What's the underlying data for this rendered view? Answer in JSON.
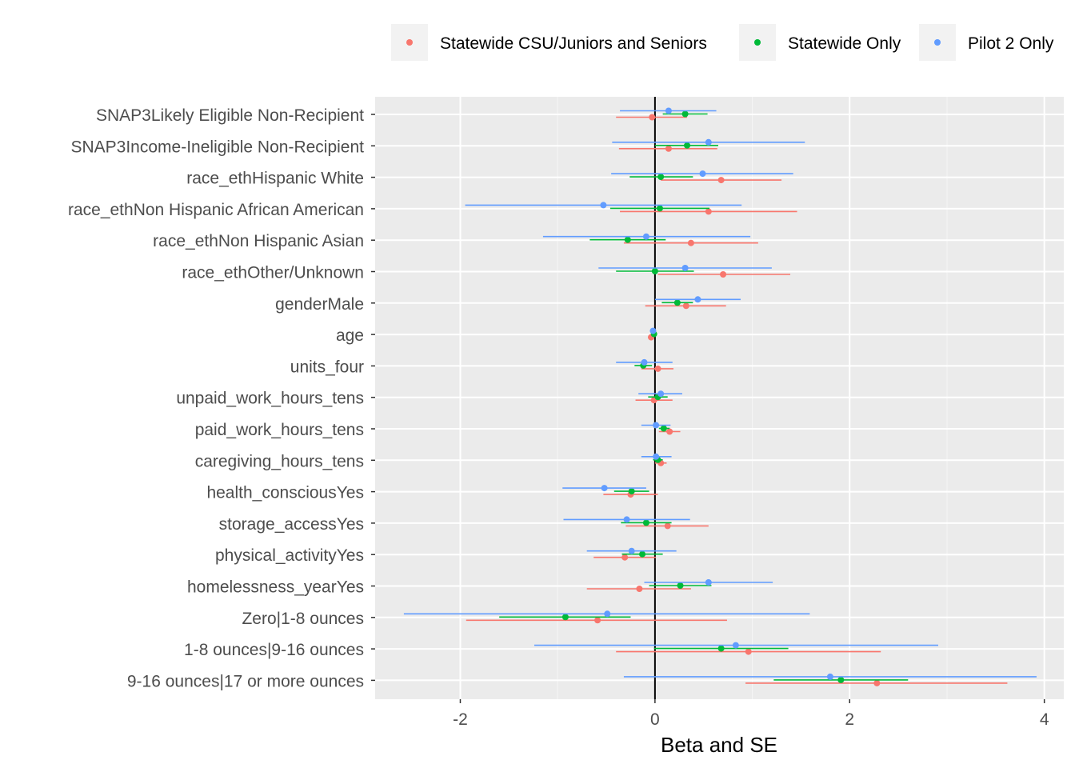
{
  "chart_data": {
    "type": "scatter",
    "title": "",
    "xlabel": "Beta and SE",
    "ylabel": "",
    "xlim": [
      -2.875,
      4.2
    ],
    "x_ticks": [
      -2,
      0,
      2,
      4
    ],
    "x_tick_labels": [
      "-2",
      "0",
      "2",
      "4"
    ],
    "zero_line": 0,
    "grid": true,
    "legend_position": "top",
    "categories": [
      "SNAP3Likely Eligible Non-Recipient",
      "SNAP3Income-Ineligible Non-Recipient",
      "race_ethHispanic White",
      "race_ethNon Hispanic African American",
      "race_ethNon Hispanic Asian",
      "race_ethOther/Unknown",
      "genderMale",
      "age",
      "units_four",
      "unpaid_work_hours_tens",
      "paid_work_hours_tens",
      "caregiving_hours_tens",
      "health_consciousYes",
      "storage_accessYes",
      "physical_activityYes",
      "homelessness_yearYes",
      "Zero|1-8 ounces",
      "1-8 ounces|9-16 ounces",
      "9-16 ounces|17 or more ounces"
    ],
    "series": [
      {
        "name": "Statewide CSU/Juniors and Seniors",
        "color": "#F8766D",
        "estimate": [
          -0.03,
          0.14,
          0.68,
          0.55,
          0.37,
          0.7,
          0.32,
          -0.04,
          0.03,
          -0.01,
          0.15,
          0.06,
          -0.25,
          0.13,
          -0.31,
          -0.16,
          -0.59,
          0.96,
          2.28
        ],
        "lower": [
          -0.4,
          -0.37,
          0.06,
          -0.36,
          -0.32,
          0.03,
          -0.1,
          -0.06,
          -0.14,
          -0.2,
          0.04,
          0.0,
          -0.53,
          -0.3,
          -0.63,
          -0.7,
          -1.94,
          -0.4,
          0.93
        ],
        "upper": [
          0.33,
          0.64,
          1.3,
          1.46,
          1.06,
          1.39,
          0.73,
          -0.02,
          0.19,
          0.18,
          0.26,
          0.12,
          0.03,
          0.55,
          0.01,
          0.37,
          0.74,
          2.32,
          3.62
        ]
      },
      {
        "name": "Statewide Only",
        "color": "#00BA38",
        "estimate": [
          0.31,
          0.33,
          0.06,
          0.05,
          -0.28,
          0.0,
          0.23,
          -0.01,
          -0.12,
          0.03,
          0.09,
          0.03,
          -0.24,
          -0.09,
          -0.13,
          0.26,
          -0.92,
          0.68,
          1.91
        ],
        "lower": [
          0.08,
          0.0,
          -0.26,
          -0.46,
          -0.67,
          -0.4,
          0.07,
          -0.02,
          -0.21,
          -0.07,
          0.04,
          -0.02,
          -0.42,
          -0.35,
          -0.34,
          -0.06,
          -1.6,
          -0.01,
          1.22
        ],
        "upper": [
          0.54,
          0.65,
          0.39,
          0.56,
          0.11,
          0.4,
          0.39,
          0.0,
          -0.03,
          0.13,
          0.15,
          0.08,
          -0.06,
          0.17,
          0.08,
          0.58,
          -0.25,
          1.37,
          2.6
        ]
      },
      {
        "name": "Pilot 2 Only",
        "color": "#619CFF",
        "estimate": [
          0.14,
          0.55,
          0.49,
          -0.53,
          -0.09,
          0.31,
          0.44,
          -0.02,
          -0.11,
          0.06,
          0.01,
          0.01,
          -0.52,
          -0.29,
          -0.24,
          0.55,
          -0.49,
          0.83,
          1.8
        ],
        "lower": [
          -0.36,
          -0.44,
          -0.45,
          -1.95,
          -1.15,
          -0.58,
          0.0,
          -0.03,
          -0.4,
          -0.17,
          -0.14,
          -0.14,
          -0.95,
          -0.94,
          -0.7,
          -0.11,
          -2.58,
          -1.24,
          -0.32
        ],
        "upper": [
          0.63,
          1.54,
          1.42,
          0.89,
          0.98,
          1.2,
          0.88,
          -0.01,
          0.18,
          0.28,
          0.16,
          0.17,
          -0.09,
          0.36,
          0.22,
          1.21,
          1.59,
          2.91,
          3.92
        ]
      }
    ]
  }
}
